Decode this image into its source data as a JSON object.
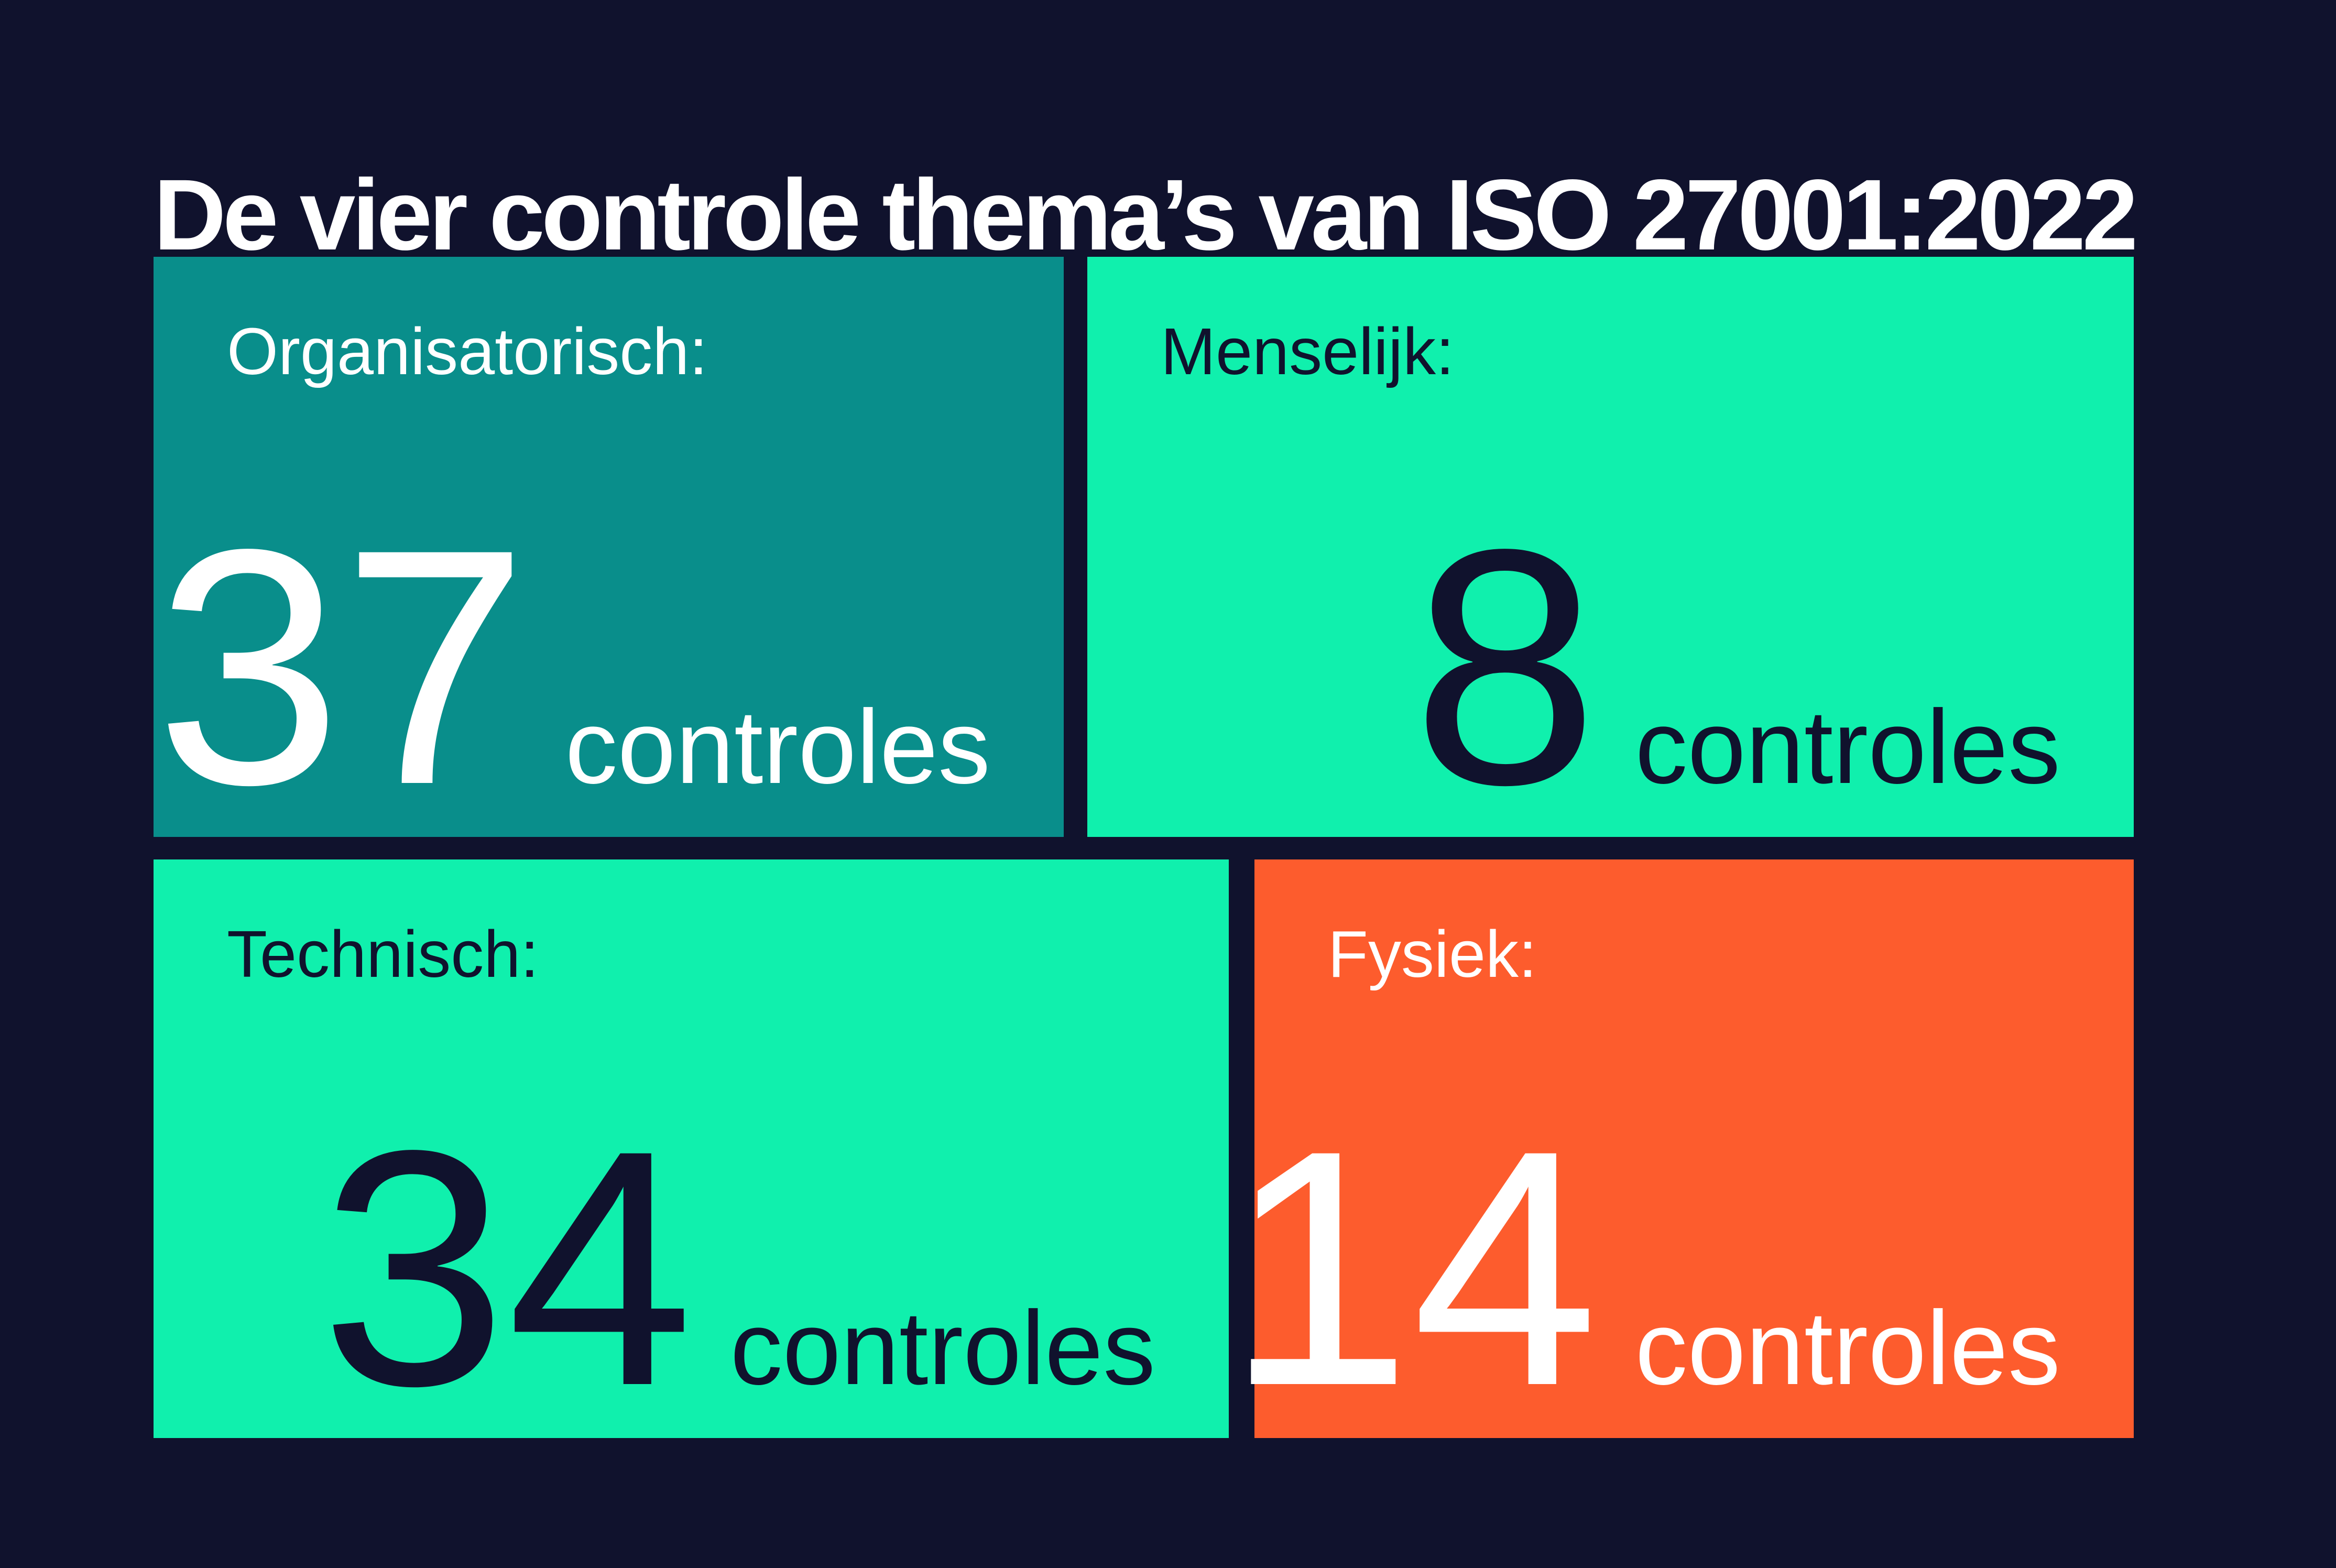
{
  "title": "De vier controle thema’s van ISO 27001:2022",
  "cards": [
    {
      "label": "Organisatorisch:",
      "value": "37",
      "unit": "controles",
      "theme": "teal"
    },
    {
      "label": "Menselijk:",
      "value": "8",
      "unit": "controles",
      "theme": "mint"
    },
    {
      "label": "Technisch:",
      "value": "34",
      "unit": "controles",
      "theme": "mint"
    },
    {
      "label": "Fysiek:",
      "value": "14",
      "unit": "controles",
      "theme": "orange"
    }
  ],
  "colors": {
    "background": "#10122D",
    "teal": "#098E8B",
    "mint": "#10F0AD",
    "orange": "#FD5C2D",
    "title_text": "#FFFFFF",
    "text_on_teal_and_orange": "#FFFFFF",
    "text_on_mint": "#10122D"
  },
  "chart_data": {
    "type": "table",
    "title": "De vier controle thema’s van ISO 27001:2022",
    "categories": [
      "Organisatorisch",
      "Menselijk",
      "Technisch",
      "Fysiek"
    ],
    "values": [
      37,
      8,
      34,
      14
    ],
    "unit": "controles",
    "layout": "2x2 stat-card grid on dark navy background"
  }
}
